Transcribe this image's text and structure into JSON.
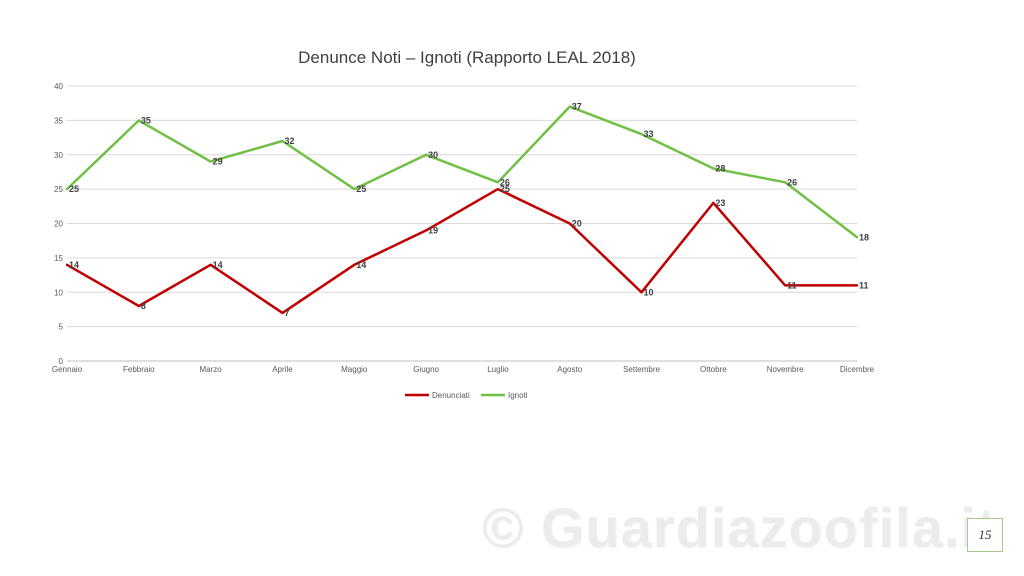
{
  "chart_data": {
    "type": "line",
    "title": "Denunce Noti – Ignoti (Rapporto LEAL 2018)",
    "categories": [
      "Gennaio",
      "Febbraio",
      "Marzo",
      "Aprile",
      "Maggio",
      "Giugno",
      "Luglio",
      "Agosto",
      "Settembre",
      "Ottobre",
      "Novembre",
      "Dicembre"
    ],
    "series": [
      {
        "name": "Denunciati",
        "color": "#c00000",
        "values": [
          14,
          8,
          14,
          7,
          14,
          19,
          25,
          20,
          10,
          23,
          11,
          11
        ]
      },
      {
        "name": "Ignoti",
        "color": "#70c045",
        "values": [
          25,
          35,
          29,
          32,
          25,
          30,
          26,
          37,
          33,
          28,
          26,
          18
        ]
      }
    ],
    "yticks": [
      0,
      5,
      10,
      15,
      20,
      25,
      30,
      35,
      40
    ],
    "ylim": [
      0,
      40
    ],
    "grid": true,
    "data_labels": true,
    "legend_position": "bottom"
  },
  "watermark": "© Guardiazoofila.it",
  "page_number": "15"
}
